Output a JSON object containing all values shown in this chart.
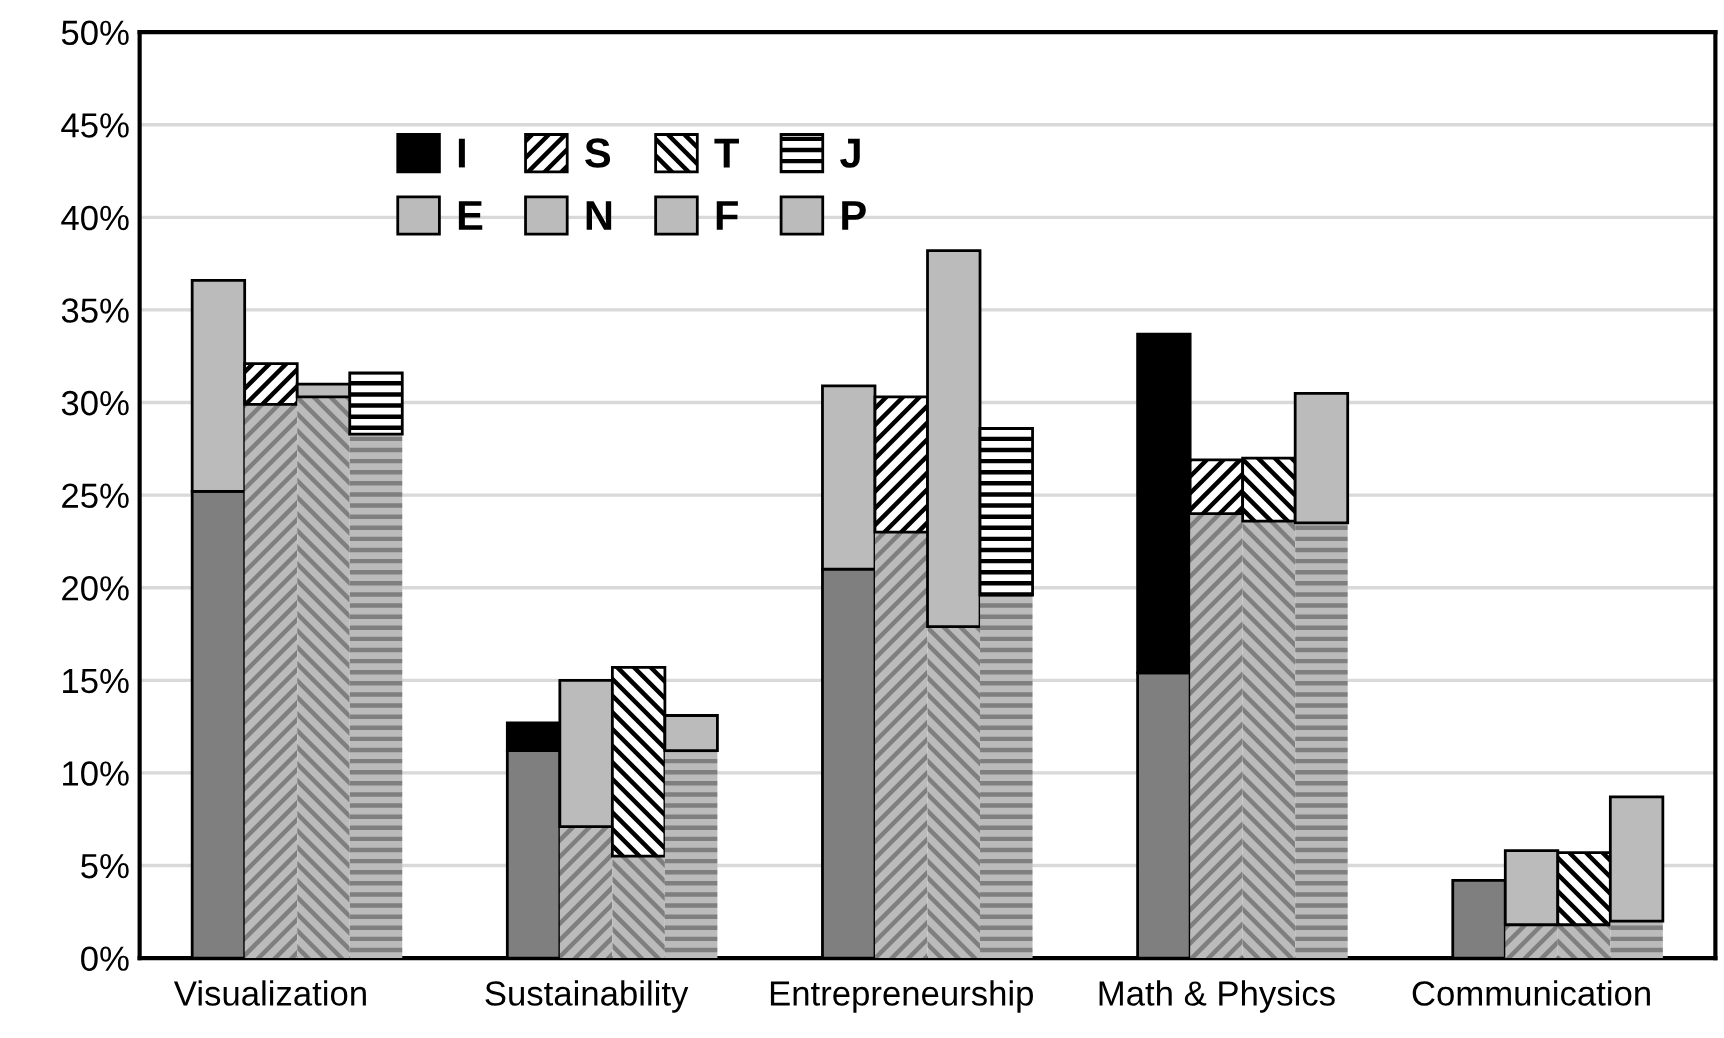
{
  "chart_data": {
    "type": "bar",
    "stacked": true,
    "categories": [
      null,
      null,
      "Visualization",
      null,
      null,
      null,
      null,
      null,
      "Sustainability",
      null,
      null,
      null,
      null,
      null,
      "Entrepreneurship",
      null,
      null,
      null,
      null,
      null,
      "Math & Physics",
      null,
      null,
      null,
      null,
      null,
      "Communication",
      null,
      null,
      null
    ],
    "series": [
      {
        "color": "#7f7f7f",
        "values": [
          null,
          25.2,
          null,
          null,
          null,
          null,
          null,
          11.2,
          null,
          null,
          null,
          null,
          null,
          21.0,
          null,
          null,
          null,
          null,
          null,
          15.4,
          null,
          null,
          null,
          null,
          null,
          4.2,
          null,
          null,
          null,
          null
        ]
      },
      {
        "name": "I",
        "color": "#000000",
        "values": [
          null,
          null,
          null,
          null,
          null,
          null,
          null,
          1.5,
          null,
          null,
          null,
          null,
          null,
          null,
          null,
          null,
          null,
          null,
          null,
          18.3,
          null,
          null,
          null,
          null,
          null,
          null,
          null,
          null,
          null,
          null
        ]
      },
      {
        "name": "E",
        "color": "#bbbbbb",
        "values": [
          null,
          11.4,
          null,
          null,
          null,
          null,
          null,
          null,
          null,
          null,
          null,
          null,
          null,
          9.9,
          null,
          null,
          null,
          null,
          null,
          null,
          null,
          null,
          null,
          null,
          null,
          null,
          null,
          null,
          null,
          null
        ]
      },
      {
        "color": "#7f7f7f",
        "values": [
          null,
          null,
          29.9,
          null,
          null,
          null,
          null,
          null,
          7.1,
          null,
          null,
          null,
          null,
          null,
          23.0,
          null,
          null,
          null,
          null,
          null,
          24.0,
          null,
          null,
          null,
          null,
          null,
          1.8,
          null,
          null,
          null
        ]
      },
      {
        "name": "S",
        "color": "#000000",
        "values": [
          null,
          null,
          2.2,
          null,
          null,
          null,
          null,
          null,
          null,
          null,
          null,
          null,
          null,
          null,
          7.3,
          null,
          null,
          null,
          null,
          null,
          2.9,
          null,
          null,
          null,
          null,
          null,
          null,
          null,
          null,
          null
        ]
      },
      {
        "name": "N",
        "color": "#bbbbbb",
        "values": [
          null,
          null,
          null,
          null,
          null,
          null,
          null,
          null,
          7.9,
          null,
          null,
          null,
          null,
          null,
          null,
          null,
          null,
          null,
          null,
          null,
          null,
          null,
          null,
          null,
          null,
          null,
          4.0,
          null,
          null,
          null
        ]
      },
      {
        "color": "#7f7f7f",
        "values": [
          null,
          null,
          null,
          30.3,
          null,
          null,
          null,
          null,
          null,
          5.5,
          null,
          null,
          null,
          null,
          null,
          17.9,
          null,
          null,
          null,
          null,
          null,
          23.6,
          null,
          null,
          null,
          null,
          null,
          1.8,
          null,
          null
        ]
      },
      {
        "name": "T",
        "color": "#000000",
        "values": [
          null,
          null,
          null,
          null,
          null,
          null,
          null,
          null,
          null,
          10.2,
          null,
          null,
          null,
          null,
          null,
          null,
          null,
          null,
          null,
          null,
          null,
          3.4,
          null,
          null,
          null,
          null,
          null,
          3.9,
          null,
          null
        ]
      },
      {
        "name": "F",
        "color": "#bbbbbb",
        "values": [
          null,
          null,
          null,
          0.7,
          null,
          null,
          null,
          null,
          null,
          null,
          null,
          null,
          null,
          null,
          null,
          20.3,
          null,
          null,
          null,
          null,
          null,
          null,
          null,
          null,
          null,
          null,
          null,
          null,
          null,
          null
        ]
      },
      {
        "color": "#7f7f7f",
        "values": [
          null,
          null,
          null,
          null,
          28.3,
          null,
          null,
          null,
          null,
          null,
          11.2,
          null,
          null,
          null,
          null,
          null,
          19.6,
          null,
          null,
          null,
          null,
          null,
          23.5,
          null,
          null,
          null,
          null,
          null,
          2.0,
          null
        ]
      },
      {
        "name": "J",
        "color": "#000000",
        "values": [
          null,
          null,
          null,
          null,
          3.3,
          null,
          null,
          null,
          null,
          null,
          null,
          null,
          null,
          null,
          null,
          null,
          9.0,
          null,
          null,
          null,
          null,
          null,
          null,
          null,
          null,
          null,
          null,
          null,
          null,
          null
        ]
      },
      {
        "name": "P",
        "color": "#bbbbbb",
        "values": [
          null,
          null,
          null,
          null,
          null,
          null,
          null,
          null,
          null,
          null,
          1.9,
          null,
          null,
          null,
          null,
          null,
          null,
          null,
          null,
          null,
          null,
          null,
          7.0,
          null,
          null,
          null,
          null,
          null,
          6.7,
          null
        ]
      }
    ],
    "ylim": [
      0,
      50
    ],
    "yticks": [
      {
        "value": 0,
        "label": "0%"
      },
      {
        "value": 5,
        "label": "5%"
      },
      {
        "value": 10,
        "label": "10%"
      },
      {
        "value": 15,
        "label": "15%"
      },
      {
        "value": 20,
        "label": "20%"
      },
      {
        "value": 25,
        "label": "25%"
      },
      {
        "value": 30,
        "label": "30%"
      },
      {
        "value": 35,
        "label": "35%"
      },
      {
        "value": 40,
        "label": "40%"
      },
      {
        "value": 45,
        "label": "45%"
      },
      {
        "value": 50,
        "label": "50%"
      }
    ],
    "grid": "y",
    "legend": "top left"
  }
}
